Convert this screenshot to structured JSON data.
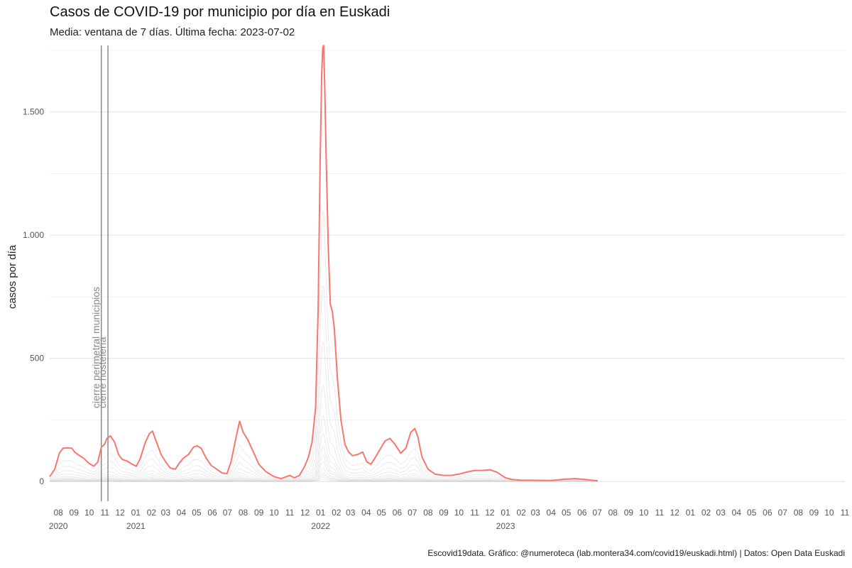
{
  "title": "Casos de COVID-19 por municipio por día en Euskadi",
  "subtitle": "Media: ventana de 7 días. Última fecha: 2023-07-02",
  "caption": "Escovid19data. Gráfico: @numeroteca (lab.montera34.com/covid19/euskadi.html) | Datos: Open Data Euskadi",
  "chart_data": {
    "type": "line",
    "title": "Casos de COVID-19 por municipio por día en Euskadi",
    "subtitle": "Media: ventana de 7 días. Última fecha: 2023-07-02",
    "xlabel": "",
    "ylabel": "casos por día",
    "ylim": [
      -80,
      1770
    ],
    "xlim": [
      "2020-07-15",
      "2024-11-01"
    ],
    "grid": true,
    "y_ticks": [
      {
        "value": 0,
        "label": "0"
      },
      {
        "value": 500,
        "label": "500"
      },
      {
        "value": 1000,
        "label": "1.000"
      },
      {
        "value": 1500,
        "label": "1.500"
      }
    ],
    "y_minor_gridlines": [
      250,
      750,
      1250,
      1750
    ],
    "x_ticks": [
      {
        "date": "2020-08-01",
        "label": "08"
      },
      {
        "date": "2020-09-01",
        "label": "09"
      },
      {
        "date": "2020-10-01",
        "label": "10"
      },
      {
        "date": "2020-11-01",
        "label": "11"
      },
      {
        "date": "2020-12-01",
        "label": "12"
      },
      {
        "date": "2021-01-01",
        "label": "01"
      },
      {
        "date": "2021-02-01",
        "label": "02"
      },
      {
        "date": "2021-03-01",
        "label": "03"
      },
      {
        "date": "2021-04-01",
        "label": "04"
      },
      {
        "date": "2021-05-01",
        "label": "05"
      },
      {
        "date": "2021-06-01",
        "label": "06"
      },
      {
        "date": "2021-07-01",
        "label": "07"
      },
      {
        "date": "2021-08-01",
        "label": "08"
      },
      {
        "date": "2021-09-01",
        "label": "09"
      },
      {
        "date": "2021-10-01",
        "label": "10"
      },
      {
        "date": "2021-11-01",
        "label": "11"
      },
      {
        "date": "2021-12-01",
        "label": "12"
      },
      {
        "date": "2022-01-01",
        "label": "01"
      },
      {
        "date": "2022-02-01",
        "label": "02"
      },
      {
        "date": "2022-03-01",
        "label": "03"
      },
      {
        "date": "2022-04-01",
        "label": "04"
      },
      {
        "date": "2022-05-01",
        "label": "05"
      },
      {
        "date": "2022-06-01",
        "label": "06"
      },
      {
        "date": "2022-07-01",
        "label": "07"
      },
      {
        "date": "2022-08-01",
        "label": "08"
      },
      {
        "date": "2022-09-01",
        "label": "09"
      },
      {
        "date": "2022-10-01",
        "label": "10"
      },
      {
        "date": "2022-11-01",
        "label": "11"
      },
      {
        "date": "2022-12-01",
        "label": "12"
      },
      {
        "date": "2023-01-01",
        "label": "01"
      },
      {
        "date": "2023-02-01",
        "label": "02"
      },
      {
        "date": "2023-03-01",
        "label": "03"
      },
      {
        "date": "2023-04-01",
        "label": "04"
      },
      {
        "date": "2023-05-01",
        "label": "05"
      },
      {
        "date": "2023-06-01",
        "label": "06"
      },
      {
        "date": "2023-07-01",
        "label": "07"
      },
      {
        "date": "2023-08-01",
        "label": "08"
      },
      {
        "date": "2023-09-01",
        "label": "09"
      },
      {
        "date": "2023-10-01",
        "label": "10"
      },
      {
        "date": "2023-11-01",
        "label": "11"
      },
      {
        "date": "2023-12-01",
        "label": "12"
      },
      {
        "date": "2024-01-01",
        "label": "01"
      },
      {
        "date": "2024-02-01",
        "label": "02"
      },
      {
        "date": "2024-03-01",
        "label": "03"
      },
      {
        "date": "2024-04-01",
        "label": "04"
      },
      {
        "date": "2024-05-01",
        "label": "05"
      },
      {
        "date": "2024-06-01",
        "label": "06"
      },
      {
        "date": "2024-07-01",
        "label": "07"
      },
      {
        "date": "2024-08-01",
        "label": "08"
      },
      {
        "date": "2024-09-01",
        "label": "09"
      },
      {
        "date": "2024-10-01",
        "label": "10"
      },
      {
        "date": "2024-11-01",
        "label": "11"
      }
    ],
    "year_labels": [
      {
        "date": "2020-08-01",
        "label": "2020"
      },
      {
        "date": "2021-01-01",
        "label": "2021"
      },
      {
        "date": "2022-01-01",
        "label": "2022"
      },
      {
        "date": "2023-01-01",
        "label": "2023"
      }
    ],
    "annotations": [
      {
        "date": "2020-10-25",
        "label": "cierre perimetral municipios"
      },
      {
        "date": "2020-11-07",
        "label": "cierre hostelería"
      }
    ],
    "series": [
      {
        "color": "#f8766d",
        "points": [
          [
            "2020-07-15",
            20
          ],
          [
            "2020-07-25",
            50
          ],
          [
            "2020-08-03",
            115
          ],
          [
            "2020-08-10",
            135
          ],
          [
            "2020-08-20",
            137
          ],
          [
            "2020-08-28",
            135
          ],
          [
            "2020-09-02",
            120
          ],
          [
            "2020-09-10",
            108
          ],
          [
            "2020-09-20",
            95
          ],
          [
            "2020-09-30",
            75
          ],
          [
            "2020-10-10",
            62
          ],
          [
            "2020-10-18",
            80
          ],
          [
            "2020-10-25",
            140
          ],
          [
            "2020-10-31",
            150
          ],
          [
            "2020-11-05",
            175
          ],
          [
            "2020-11-12",
            185
          ],
          [
            "2020-11-20",
            160
          ],
          [
            "2020-11-28",
            110
          ],
          [
            "2020-12-05",
            90
          ],
          [
            "2020-12-15",
            83
          ],
          [
            "2020-12-25",
            70
          ],
          [
            "2021-01-02",
            62
          ],
          [
            "2021-01-10",
            95
          ],
          [
            "2021-01-20",
            160
          ],
          [
            "2021-01-28",
            195
          ],
          [
            "2021-02-03",
            205
          ],
          [
            "2021-02-10",
            165
          ],
          [
            "2021-02-20",
            110
          ],
          [
            "2021-03-01",
            80
          ],
          [
            "2021-03-10",
            55
          ],
          [
            "2021-03-20",
            50
          ],
          [
            "2021-03-28",
            75
          ],
          [
            "2021-04-05",
            95
          ],
          [
            "2021-04-15",
            110
          ],
          [
            "2021-04-25",
            140
          ],
          [
            "2021-05-02",
            145
          ],
          [
            "2021-05-10",
            135
          ],
          [
            "2021-05-20",
            95
          ],
          [
            "2021-05-30",
            65
          ],
          [
            "2021-06-10",
            50
          ],
          [
            "2021-06-20",
            35
          ],
          [
            "2021-06-30",
            32
          ],
          [
            "2021-07-08",
            80
          ],
          [
            "2021-07-18",
            180
          ],
          [
            "2021-07-25",
            245
          ],
          [
            "2021-08-01",
            200
          ],
          [
            "2021-08-10",
            170
          ],
          [
            "2021-08-20",
            125
          ],
          [
            "2021-09-01",
            70
          ],
          [
            "2021-09-15",
            40
          ],
          [
            "2021-10-01",
            20
          ],
          [
            "2021-10-15",
            12
          ],
          [
            "2021-11-01",
            25
          ],
          [
            "2021-11-10",
            15
          ],
          [
            "2021-11-20",
            25
          ],
          [
            "2021-11-30",
            60
          ],
          [
            "2021-12-08",
            100
          ],
          [
            "2021-12-15",
            160
          ],
          [
            "2021-12-22",
            300
          ],
          [
            "2021-12-27",
            700
          ],
          [
            "2021-12-31",
            1300
          ],
          [
            "2022-01-03",
            1650
          ],
          [
            "2022-01-05",
            1760
          ],
          [
            "2022-01-07",
            1770
          ],
          [
            "2022-01-09",
            1600
          ],
          [
            "2022-01-12",
            1300
          ],
          [
            "2022-01-16",
            950
          ],
          [
            "2022-01-20",
            720
          ],
          [
            "2022-01-24",
            690
          ],
          [
            "2022-01-28",
            620
          ],
          [
            "2022-02-03",
            420
          ],
          [
            "2022-02-10",
            250
          ],
          [
            "2022-02-18",
            150
          ],
          [
            "2022-02-25",
            120
          ],
          [
            "2022-03-05",
            105
          ],
          [
            "2022-03-15",
            110
          ],
          [
            "2022-03-25",
            120
          ],
          [
            "2022-04-02",
            80
          ],
          [
            "2022-04-10",
            70
          ],
          [
            "2022-04-18",
            95
          ],
          [
            "2022-04-28",
            130
          ],
          [
            "2022-05-08",
            165
          ],
          [
            "2022-05-18",
            175
          ],
          [
            "2022-05-28",
            150
          ],
          [
            "2022-06-08",
            115
          ],
          [
            "2022-06-18",
            135
          ],
          [
            "2022-06-28",
            200
          ],
          [
            "2022-07-06",
            215
          ],
          [
            "2022-07-12",
            180
          ],
          [
            "2022-07-20",
            100
          ],
          [
            "2022-08-01",
            50
          ],
          [
            "2022-08-15",
            30
          ],
          [
            "2022-09-01",
            25
          ],
          [
            "2022-09-15",
            25
          ],
          [
            "2022-10-01",
            30
          ],
          [
            "2022-10-15",
            38
          ],
          [
            "2022-11-01",
            45
          ],
          [
            "2022-11-15",
            45
          ],
          [
            "2022-12-01",
            48
          ],
          [
            "2022-12-15",
            38
          ],
          [
            "2023-01-01",
            15
          ],
          [
            "2023-01-15",
            8
          ],
          [
            "2023-02-01",
            6
          ],
          [
            "2023-03-01",
            5
          ],
          [
            "2023-04-01",
            4
          ],
          [
            "2023-05-01",
            10
          ],
          [
            "2023-05-20",
            12
          ],
          [
            "2023-06-10",
            8
          ],
          [
            "2023-07-02",
            3
          ]
        ]
      }
    ]
  }
}
